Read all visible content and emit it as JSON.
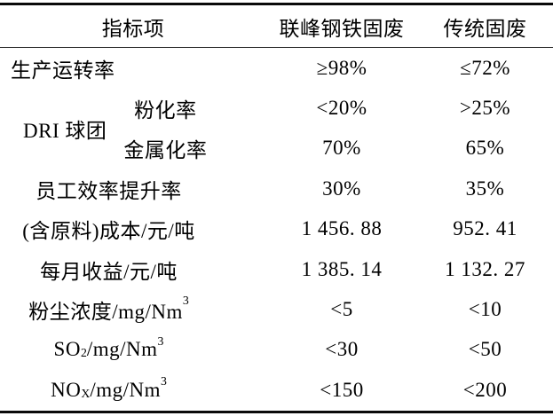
{
  "colors": {
    "background": "#ffffff",
    "text": "#000000",
    "rule": "#0a0a0a"
  },
  "table": {
    "header": {
      "indicator": "指标项",
      "lianfeng": "联峰钢铁固废",
      "traditional": "传统固废"
    },
    "rows": {
      "operation_rate": {
        "label": [
          {
            "t": "生产运转率"
          }
        ],
        "lianfeng": "≥98%",
        "traditional": "≤72%"
      },
      "dri_pellet": {
        "group_label": "DRI 球团",
        "pulverization_rate": {
          "label": [
            {
              "t": "粉化率"
            }
          ],
          "lianfeng": "<20%",
          "traditional": ">25%"
        },
        "metallization_rate": {
          "label": [
            {
              "t": "金属化率"
            }
          ],
          "lianfeng": "70%",
          "traditional": "65%"
        }
      },
      "staff_efficiency": {
        "label": [
          {
            "t": "员工效率提升率"
          }
        ],
        "lianfeng": "30%",
        "traditional": "35%"
      },
      "cost_per_ton": {
        "label": [
          {
            "t": "(含原料)成本/元/吨"
          }
        ],
        "lianfeng": "1 456. 88",
        "traditional": "952. 41"
      },
      "monthly_income_per_ton": {
        "label": [
          {
            "t": "每月收益/元/吨"
          }
        ],
        "lianfeng": "1 385. 14",
        "traditional": "1 132. 27"
      },
      "dust_concentration": {
        "label": [
          {
            "t": "粉尘浓度/mg/Nm"
          },
          {
            "sup": "3"
          }
        ],
        "lianfeng": "<5",
        "traditional": "<10"
      },
      "so2": {
        "label": [
          {
            "t": "SO"
          },
          {
            "sub": "2"
          },
          {
            "t": "/mg/Nm"
          },
          {
            "sup": "3"
          }
        ],
        "lianfeng": "<30",
        "traditional": "<50"
      },
      "nox": {
        "label": [
          {
            "t": "NO"
          },
          {
            "sub": "X"
          },
          {
            "t": "/mg/Nm"
          },
          {
            "sup": "3"
          }
        ],
        "lianfeng": "<150",
        "traditional": "<200"
      }
    }
  }
}
